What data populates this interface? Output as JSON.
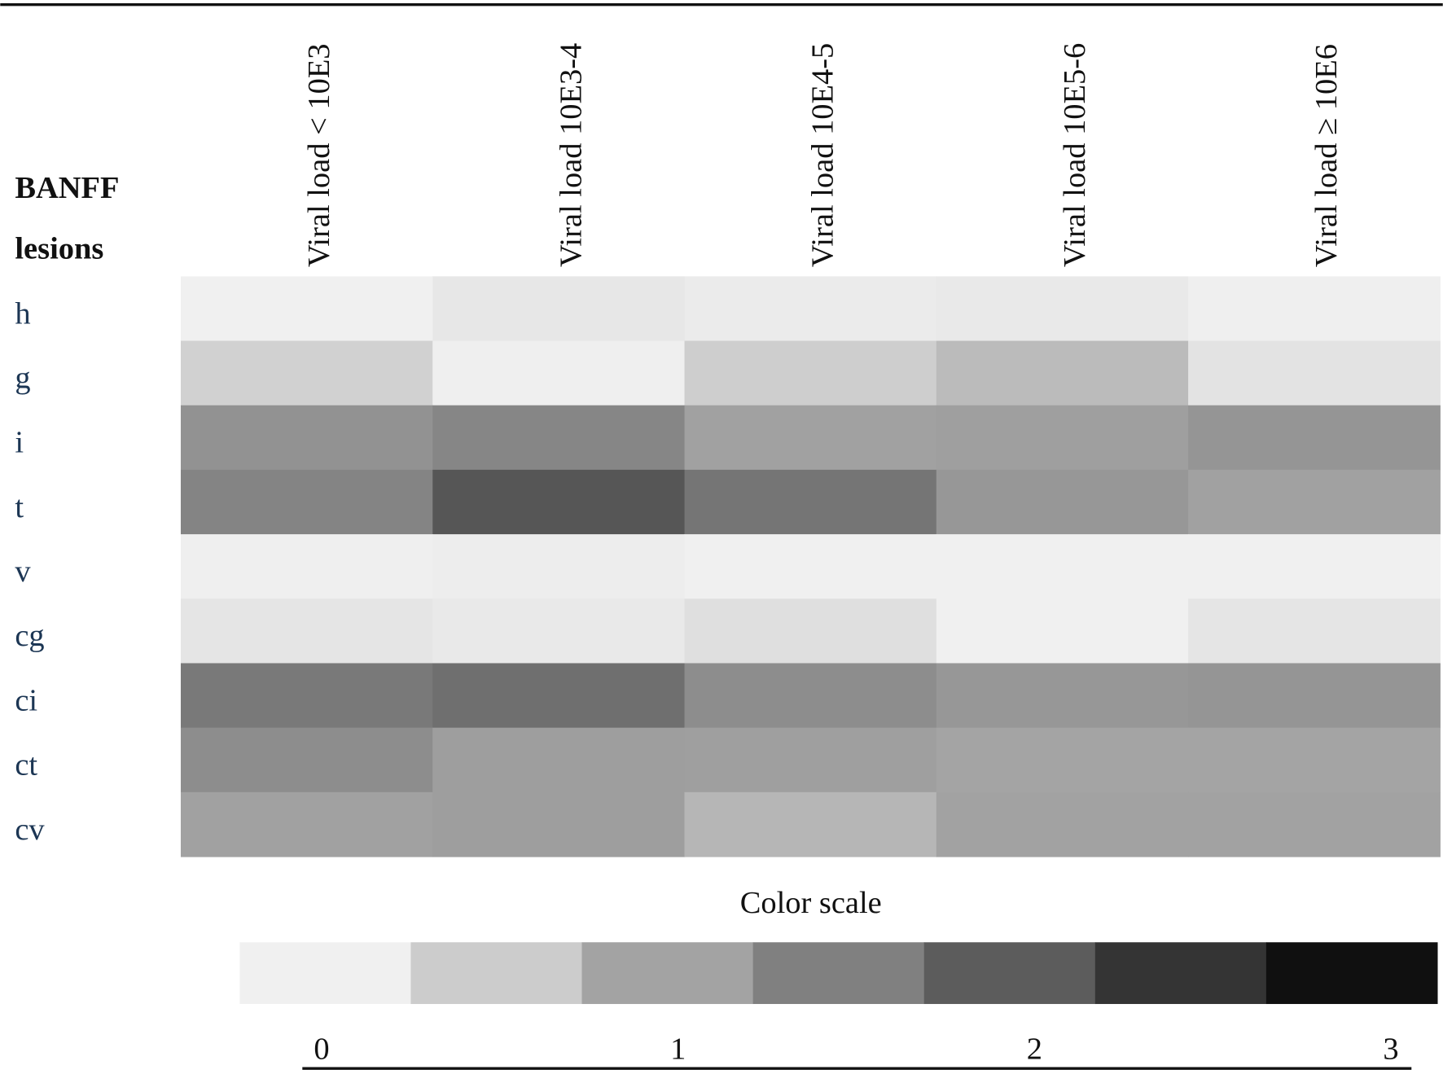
{
  "chart_data": {
    "type": "heatmap",
    "y_axis_label": [
      "BANFF",
      "lesions"
    ],
    "x_categories": [
      "Viral load < 10E3",
      "Viral load 10E3-4",
      "Viral load 10E4-5",
      "Viral load 10E5-6",
      "Viral load ≥ 10E6"
    ],
    "y_categories": [
      "h",
      "g",
      "i",
      "t",
      "v",
      "cg",
      "ci",
      "ct",
      "cv"
    ],
    "values": [
      [
        0.01,
        0.13,
        0.08,
        0.1,
        0.03
      ],
      [
        0.43,
        0.03,
        0.47,
        0.69,
        0.19
      ],
      [
        1.2,
        1.37,
        1.0,
        1.03,
        1.16
      ],
      [
        1.39,
        2.0,
        1.6,
        1.13,
        1.0
      ],
      [
        0.03,
        0.05,
        0.0,
        0.0,
        0.0
      ],
      [
        0.16,
        0.11,
        0.24,
        0.0,
        0.16
      ],
      [
        1.55,
        1.68,
        1.27,
        1.13,
        1.16
      ],
      [
        1.27,
        1.04,
        1.03,
        0.96,
        0.96
      ],
      [
        1.0,
        1.04,
        0.75,
        0.99,
        0.99
      ]
    ],
    "colorbar": {
      "title": "Color scale",
      "colors": [
        "#f0f0f0",
        "#cccccc",
        "#a3a3a3",
        "#808080",
        "#5c5c5c",
        "#343434",
        "#101010"
      ],
      "lim": [
        -0.23,
        3.13
      ],
      "ticks": [
        0,
        1,
        2,
        3
      ]
    }
  }
}
